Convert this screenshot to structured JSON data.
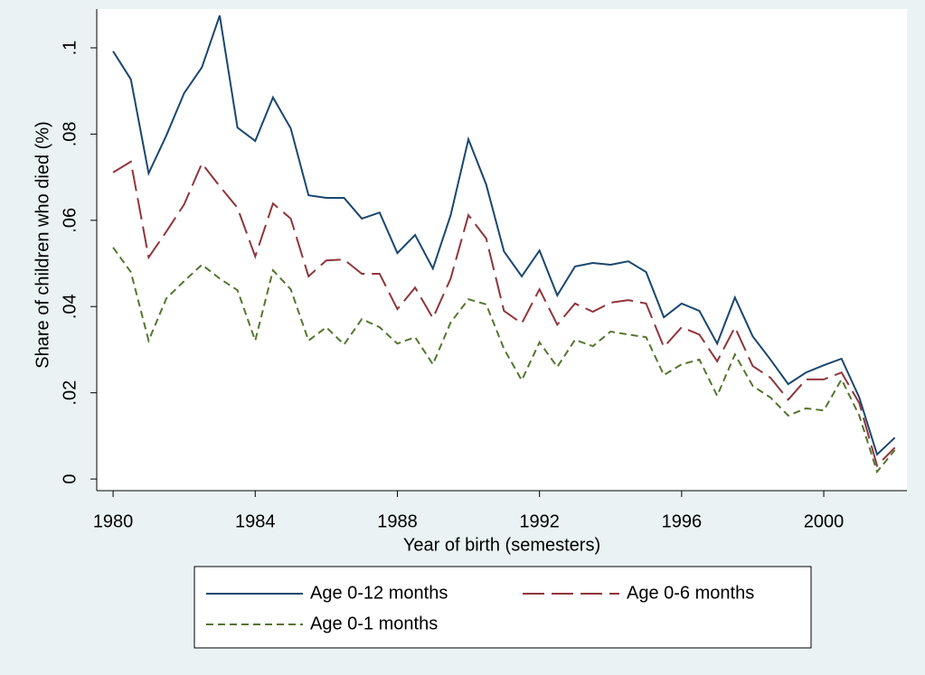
{
  "chart_data": {
    "type": "line",
    "xlabel": "Year of birth (semesters)",
    "ylabel": "Share of children who died (%)",
    "x": [
      1980,
      1980.5,
      1981,
      1981.5,
      1982,
      1982.5,
      1983,
      1983.5,
      1984,
      1984.5,
      1985,
      1985.5,
      1986,
      1986.5,
      1987,
      1987.5,
      1988,
      1988.5,
      1989,
      1989.5,
      1990,
      1990.5,
      1991,
      1991.5,
      1992,
      1992.5,
      1993,
      1993.5,
      1994,
      1994.5,
      1995,
      1995.5,
      1996,
      1996.5,
      1997,
      1997.5,
      1998,
      1998.5,
      1999,
      1999.5,
      2000,
      2000.5,
      2001,
      2001.5,
      2002
    ],
    "series": [
      {
        "name": "Age 0-12 months",
        "color": "#1a476f",
        "dash": "none",
        "values": [
          0.0992,
          0.0927,
          0.0709,
          0.0797,
          0.0895,
          0.0955,
          0.1075,
          0.0815,
          0.0784,
          0.0885,
          0.0813,
          0.0658,
          0.0652,
          0.0652,
          0.0604,
          0.0618,
          0.0524,
          0.0566,
          0.0488,
          0.0612,
          0.0788,
          0.0683,
          0.0528,
          0.047,
          0.053,
          0.0426,
          0.0493,
          0.0501,
          0.0497,
          0.0505,
          0.048,
          0.0375,
          0.0407,
          0.039,
          0.0314,
          0.0421,
          0.0331,
          0.0277,
          0.022,
          0.0247,
          0.0264,
          0.0279,
          0.0189,
          0.0057,
          0.0096
        ]
      },
      {
        "name": "Age 0-6 months",
        "color": "#90353b",
        "dash": "24,8",
        "values": [
          0.0711,
          0.0736,
          0.0514,
          0.0574,
          0.0637,
          0.0732,
          0.0679,
          0.0629,
          0.0516,
          0.0639,
          0.0604,
          0.047,
          0.0507,
          0.0509,
          0.0476,
          0.0476,
          0.0394,
          0.0444,
          0.0373,
          0.0465,
          0.0612,
          0.0558,
          0.039,
          0.0361,
          0.044,
          0.0358,
          0.0407,
          0.0388,
          0.0409,
          0.0415,
          0.0407,
          0.0306,
          0.0352,
          0.0335,
          0.0273,
          0.0352,
          0.0262,
          0.0235,
          0.0184,
          0.0231,
          0.0231,
          0.0247,
          0.0176,
          0.0031,
          0.0073
        ]
      },
      {
        "name": "Age 0-1 months",
        "color": "#55752f",
        "dash": "8,5",
        "values": [
          0.0537,
          0.048,
          0.0321,
          0.0419,
          0.0459,
          0.0497,
          0.0465,
          0.0438,
          0.0321,
          0.0484,
          0.044,
          0.0321,
          0.0352,
          0.0312,
          0.0371,
          0.0352,
          0.0314,
          0.0329,
          0.0266,
          0.0363,
          0.0417,
          0.0405,
          0.0302,
          0.0229,
          0.0317,
          0.026,
          0.0323,
          0.0308,
          0.0342,
          0.0335,
          0.0329,
          0.0241,
          0.0266,
          0.0277,
          0.0193,
          0.0289,
          0.0216,
          0.0189,
          0.0147,
          0.0164,
          0.0159,
          0.0231,
          0.0147,
          0.0017,
          0.0067
        ]
      }
    ],
    "xlim": [
      1979.54,
      2002.34
    ],
    "xticks": [
      1980,
      1984,
      1988,
      1992,
      1996,
      2000
    ],
    "ylim": [
      -0.0027,
      0.109
    ],
    "yticks": [
      0,
      {
        "value": 0.02,
        "label": ".02"
      },
      {
        "value": 0.04,
        "label": ".04"
      },
      {
        "value": 0.06,
        "label": ".06"
      },
      {
        "value": 0.08,
        "label": ".08"
      },
      {
        "value": 0.1,
        "label": ".1"
      }
    ],
    "grid": false,
    "legend": "bottom"
  }
}
